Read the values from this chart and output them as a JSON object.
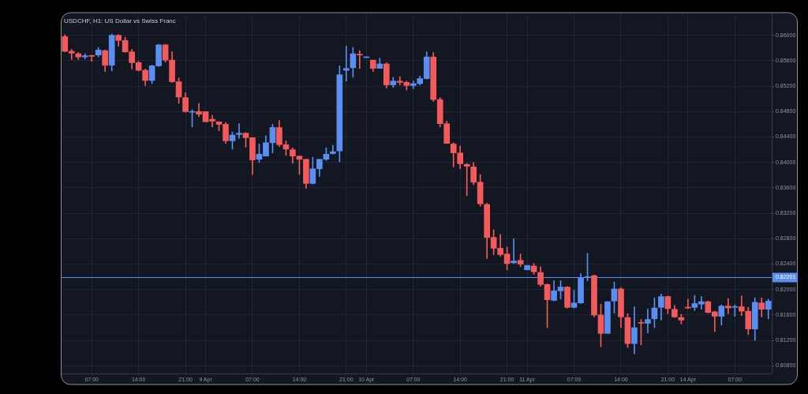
{
  "chart_data": {
    "type": "candlestick",
    "title": "USDCHF, H1: US Dollar vs Swiss Franc",
    "categories": [
      null,
      null,
      null,
      null,
      "07:00",
      null,
      null,
      null,
      null,
      null,
      null,
      "14:00",
      null,
      null,
      null,
      null,
      null,
      null,
      "21:00",
      null,
      null,
      "9 Apr",
      null,
      null,
      null,
      null,
      null,
      null,
      "07:00",
      null,
      null,
      null,
      null,
      null,
      null,
      "14:00",
      null,
      null,
      null,
      null,
      null,
      null,
      "21:00",
      null,
      null,
      "10 Apr",
      null,
      null,
      null,
      null,
      null,
      null,
      "07:00",
      null,
      null,
      null,
      null,
      null,
      null,
      "14:00",
      null,
      null,
      null,
      null,
      null,
      null,
      "21:00",
      null,
      null,
      "11 Apr",
      null,
      null,
      null,
      null,
      null,
      null,
      "07:00",
      null,
      null,
      null,
      null,
      null,
      null,
      "14:00",
      null,
      null,
      null,
      null,
      null,
      null,
      "21:00",
      null,
      null,
      "14 Apr",
      null,
      null,
      null,
      null,
      null,
      null,
      "07:00",
      null,
      null,
      null,
      null,
      null
    ],
    "ohlc": [
      [
        0.8598,
        0.8601,
        0.8574,
        0.8575
      ],
      [
        0.8575,
        0.8578,
        0.8562,
        0.8572
      ],
      [
        0.8571,
        0.8573,
        0.8562,
        0.8566
      ],
      [
        0.8566,
        0.8571,
        0.8563,
        0.8568
      ],
      [
        0.8568,
        0.8569,
        0.8559,
        0.8567
      ],
      [
        0.8569,
        0.8581,
        0.8566,
        0.8577
      ],
      [
        0.8576,
        0.8577,
        0.8543,
        0.8553
      ],
      [
        0.8553,
        0.8602,
        0.8544,
        0.86
      ],
      [
        0.86,
        0.8601,
        0.8583,
        0.8592
      ],
      [
        0.8592,
        0.8597,
        0.8573,
        0.8574
      ],
      [
        0.8574,
        0.8578,
        0.8547,
        0.8557
      ],
      [
        0.8557,
        0.8559,
        0.8544,
        0.8545
      ],
      [
        0.8545,
        0.8547,
        0.8521,
        0.8529
      ],
      [
        0.8529,
        0.8553,
        0.8524,
        0.8552
      ],
      [
        0.8552,
        0.8586,
        0.8551,
        0.8585
      ],
      [
        0.8585,
        0.8586,
        0.8558,
        0.8561
      ],
      [
        0.8561,
        0.8574,
        0.8526,
        0.8527
      ],
      [
        0.8527,
        0.8533,
        0.8493,
        0.8503
      ],
      [
        0.8502,
        0.851,
        0.8479,
        0.848
      ],
      [
        0.8479,
        0.8483,
        0.8456,
        0.848
      ],
      [
        0.848,
        0.8493,
        0.8472,
        0.8476
      ],
      [
        0.848,
        0.848,
        0.8464,
        0.8464
      ],
      [
        0.8468,
        0.8474,
        0.8456,
        0.8465
      ],
      [
        0.8464,
        0.8464,
        0.845,
        0.846
      ],
      [
        0.846,
        0.8463,
        0.843,
        0.8434
      ],
      [
        0.8434,
        0.8448,
        0.8421,
        0.8443
      ],
      [
        0.8444,
        0.8461,
        0.8438,
        0.8446
      ],
      [
        0.8446,
        0.8447,
        0.8424,
        0.8439
      ],
      [
        0.8439,
        0.8439,
        0.8381,
        0.8404
      ],
      [
        0.8405,
        0.8429,
        0.84,
        0.8413
      ],
      [
        0.841,
        0.8442,
        0.841,
        0.8431
      ],
      [
        0.8431,
        0.846,
        0.8415,
        0.8455
      ],
      [
        0.8455,
        0.8466,
        0.8425,
        0.8428
      ],
      [
        0.8428,
        0.8434,
        0.8411,
        0.8421
      ],
      [
        0.842,
        0.8423,
        0.8399,
        0.841
      ],
      [
        0.841,
        0.841,
        0.8381,
        0.8405
      ],
      [
        0.8405,
        0.8405,
        0.8359,
        0.8367
      ],
      [
        0.8367,
        0.8408,
        0.8366,
        0.839
      ],
      [
        0.839,
        0.8405,
        0.8378,
        0.8405
      ],
      [
        0.8405,
        0.8423,
        0.8403,
        0.8413
      ],
      [
        0.8414,
        0.8427,
        0.8413,
        0.8417
      ],
      [
        0.8418,
        0.8552,
        0.8401,
        0.8538
      ],
      [
        0.8545,
        0.8583,
        0.8528,
        0.8548
      ],
      [
        0.8549,
        0.8581,
        0.8534,
        0.8571
      ],
      [
        0.857,
        0.8576,
        0.8548,
        0.8569
      ],
      [
        0.8565,
        0.8566,
        0.8565,
        0.8566
      ],
      [
        0.8561,
        0.8561,
        0.8543,
        0.8548
      ],
      [
        0.8548,
        0.8564,
        0.8548,
        0.8555
      ],
      [
        0.8555,
        0.8557,
        0.8517,
        0.8522
      ],
      [
        0.8522,
        0.8534,
        0.8518,
        0.8528
      ],
      [
        0.8528,
        0.8535,
        0.8522,
        0.8526
      ],
      [
        0.8526,
        0.8528,
        0.8514,
        0.8521
      ],
      [
        0.8521,
        0.8528,
        0.8516,
        0.8524
      ],
      [
        0.8524,
        0.8536,
        0.8522,
        0.8532
      ],
      [
        0.8532,
        0.8574,
        0.8531,
        0.8566
      ],
      [
        0.8566,
        0.8573,
        0.8496,
        0.8499
      ],
      [
        0.8499,
        0.8502,
        0.8456,
        0.8461
      ],
      [
        0.8461,
        0.8465,
        0.843,
        0.843
      ],
      [
        0.8429,
        0.8431,
        0.8393,
        0.8415
      ],
      [
        0.8415,
        0.8426,
        0.839,
        0.8398
      ],
      [
        0.8397,
        0.8398,
        0.8348,
        0.8394
      ],
      [
        0.8393,
        0.84,
        0.8365,
        0.8369
      ],
      [
        0.8369,
        0.8381,
        0.8331,
        0.8335
      ],
      [
        0.8334,
        0.8336,
        0.8249,
        0.8282
      ],
      [
        0.8282,
        0.8294,
        0.8255,
        0.8265
      ],
      [
        0.8265,
        0.8287,
        0.8252,
        0.8255
      ],
      [
        0.8256,
        0.8267,
        0.8231,
        0.8241
      ],
      [
        0.8242,
        0.828,
        0.8241,
        0.8245
      ],
      [
        0.8246,
        0.8256,
        0.8236,
        0.824
      ],
      [
        0.8231,
        0.8238,
        0.8231,
        0.8238
      ],
      [
        0.8237,
        0.8241,
        0.8224,
        0.8228
      ],
      [
        0.8227,
        0.8236,
        0.8205,
        0.8208
      ],
      [
        0.8208,
        0.8209,
        0.814,
        0.8184
      ],
      [
        0.8183,
        0.8214,
        0.8182,
        0.8198
      ],
      [
        0.8198,
        0.8214,
        0.8185,
        0.8204
      ],
      [
        0.8204,
        0.8205,
        0.8171,
        0.8172
      ],
      [
        0.8172,
        0.8199,
        0.8171,
        0.8179
      ],
      [
        0.8179,
        0.8225,
        0.8178,
        0.8219
      ],
      [
        0.8219,
        0.8257,
        0.8214,
        0.822
      ],
      [
        0.8222,
        0.8223,
        0.8157,
        0.816
      ],
      [
        0.816,
        0.8177,
        0.811,
        0.8131
      ],
      [
        0.8131,
        0.8181,
        0.8131,
        0.8181
      ],
      [
        0.8182,
        0.8212,
        0.8163,
        0.8201
      ],
      [
        0.8201,
        0.8203,
        0.814,
        0.8157
      ],
      [
        0.8156,
        0.8162,
        0.8109,
        0.8115
      ],
      [
        0.8115,
        0.8173,
        0.8099,
        0.814
      ],
      [
        0.8148,
        0.8153,
        0.8113,
        0.8147
      ],
      [
        0.8147,
        0.8169,
        0.8132,
        0.8153
      ],
      [
        0.8154,
        0.8187,
        0.814,
        0.8171
      ],
      [
        0.8172,
        0.8193,
        0.8152,
        0.8189
      ],
      [
        0.8189,
        0.819,
        0.8162,
        0.817
      ],
      [
        0.8169,
        0.8175,
        0.8156,
        0.8157
      ],
      [
        0.8156,
        0.8161,
        0.8146,
        0.8152
      ],
      [
        0.8172,
        0.8185,
        0.817,
        0.8171
      ],
      [
        0.8172,
        0.8191,
        0.8167,
        0.8178
      ],
      [
        0.8177,
        0.8189,
        0.8169,
        0.8181
      ],
      [
        0.8181,
        0.8182,
        0.8163,
        0.8164
      ],
      [
        0.8165,
        0.8166,
        0.8134,
        0.8158
      ],
      [
        0.8158,
        0.8176,
        0.8144,
        0.8174
      ],
      [
        0.8174,
        0.8186,
        0.8162,
        0.8171
      ],
      [
        0.8172,
        0.8176,
        0.8158,
        0.8173
      ],
      [
        0.8173,
        0.819,
        0.8159,
        0.8166
      ],
      [
        0.8166,
        0.8172,
        0.8129,
        0.8138
      ],
      [
        0.8138,
        0.8187,
        0.812,
        0.818
      ],
      [
        0.8179,
        0.8187,
        0.8157,
        0.8169
      ],
      [
        0.8169,
        0.8185,
        0.8154,
        0.8182
      ]
    ],
    "colors": [
      "#f55a5a",
      "#f55a5a",
      "#f55a5a",
      "#5b8ef2",
      "#f55a5a",
      "#5b8ef2",
      "#f55a5a",
      "#5b8ef2",
      "#f55a5a",
      "#f55a5a",
      "#f55a5a",
      "#f55a5a",
      "#f55a5a",
      "#5b8ef2",
      "#5b8ef2",
      "#f55a5a",
      "#f55a5a",
      "#f55a5a",
      "#f55a5a",
      "#5b8ef2",
      "#f55a5a",
      "#f55a5a",
      "#f55a5a",
      "#f55a5a",
      "#f55a5a",
      "#5b8ef2",
      "#5b8ef2",
      "#f55a5a",
      "#f55a5a",
      "#5b8ef2",
      "#5b8ef2",
      "#5b8ef2",
      "#f55a5a",
      "#f55a5a",
      "#f55a5a",
      "#f55a5a",
      "#f55a5a",
      "#5b8ef2",
      "#5b8ef2",
      "#5b8ef2",
      "#5b8ef2",
      "#5b8ef2",
      "#5b8ef2",
      "#5b8ef2",
      "#f55a5a",
      "#5b8ef2",
      "#f55a5a",
      "#5b8ef2",
      "#f55a5a",
      "#5b8ef2",
      "#f55a5a",
      "#f55a5a",
      "#5b8ef2",
      "#5b8ef2",
      "#5b8ef2",
      "#f55a5a",
      "#f55a5a",
      "#f55a5a",
      "#f55a5a",
      "#f55a5a",
      "#f55a5a",
      "#f55a5a",
      "#f55a5a",
      "#f55a5a",
      "#f55a5a",
      "#f55a5a",
      "#f55a5a",
      "#5b8ef2",
      "#f55a5a",
      "#5b8ef2",
      "#f55a5a",
      "#f55a5a",
      "#f55a5a",
      "#5b8ef2",
      "#5b8ef2",
      "#f55a5a",
      "#5b8ef2",
      "#5b8ef2",
      "#5b8ef2",
      "#f55a5a",
      "#f55a5a",
      "#5b8ef2",
      "#5b8ef2",
      "#f55a5a",
      "#f55a5a",
      "#5b8ef2",
      "#f55a5a",
      "#5b8ef2",
      "#5b8ef2",
      "#5b8ef2",
      "#f55a5a",
      "#f55a5a",
      "#f55a5a",
      "#f55a5a",
      "#5b8ef2",
      "#5b8ef2",
      "#f55a5a",
      "#f55a5a",
      "#5b8ef2",
      "#f55a5a",
      "#5b8ef2",
      "#f55a5a",
      "#f55a5a",
      "#5b8ef2",
      "#f55a5a",
      "#5b8ef2"
    ],
    "ylim": [
      0.8068,
      0.8632
    ],
    "yticks": [
      {
        "value": 0.808,
        "label": "0.80800"
      },
      {
        "value": 0.812,
        "label": "0.81200"
      },
      {
        "value": 0.816,
        "label": "0.81600"
      },
      {
        "value": 0.82,
        "label": "0.82000"
      },
      {
        "value": 0.824,
        "label": "0.82400"
      },
      {
        "value": 0.828,
        "label": "0.82800"
      },
      {
        "value": 0.832,
        "label": "0.83200"
      },
      {
        "value": 0.836,
        "label": "0.83600"
      },
      {
        "value": 0.84,
        "label": "0.84000"
      },
      {
        "value": 0.844,
        "label": "0.84400"
      },
      {
        "value": 0.848,
        "label": "0.84800"
      },
      {
        "value": 0.852,
        "label": "0.85200"
      },
      {
        "value": 0.856,
        "label": "0.85600"
      },
      {
        "value": 0.86,
        "label": "0.86000"
      }
    ],
    "grid": true,
    "ref_lines": [
      {
        "axis": "y",
        "value": 0.82201,
        "label": "0.82201",
        "color": "#5b8ef2"
      }
    ]
  }
}
